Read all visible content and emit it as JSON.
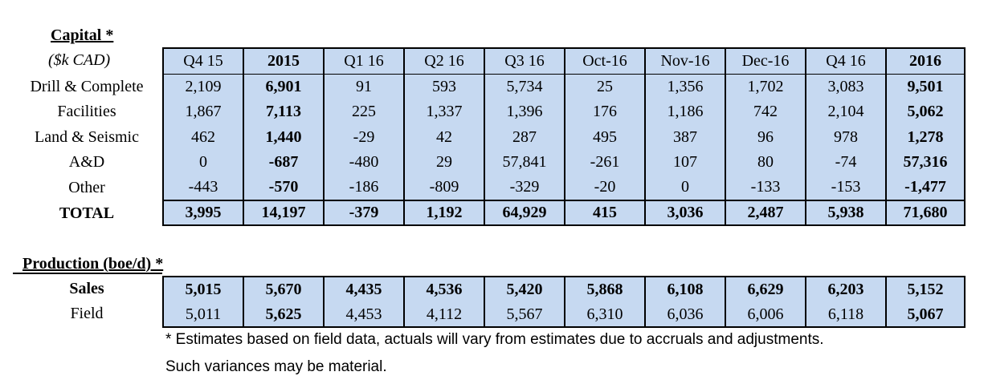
{
  "capital": {
    "title": "Capital *",
    "unit": "($k CAD)",
    "columns": [
      "Q4 15",
      "2015",
      "Q1 16",
      "Q2 16",
      "Q3 16",
      "Oct-16",
      "Nov-16",
      "Dec-16",
      "Q4 16",
      "2016"
    ],
    "rows": [
      {
        "label": "Drill & Complete",
        "values": [
          "2,109",
          "6,901",
          "91",
          "593",
          "5,734",
          "25",
          "1,356",
          "1,702",
          "3,083",
          "9,501"
        ]
      },
      {
        "label": "Facilities",
        "values": [
          "1,867",
          "7,113",
          "225",
          "1,337",
          "1,396",
          "176",
          "1,186",
          "742",
          "2,104",
          "5,062"
        ]
      },
      {
        "label": "Land & Seismic",
        "values": [
          "462",
          "1,440",
          "-29",
          "42",
          "287",
          "495",
          "387",
          "96",
          "978",
          "1,278"
        ]
      },
      {
        "label": "A&D",
        "values": [
          "0",
          "-687",
          "-480",
          "29",
          "57,841",
          "-261",
          "107",
          "80",
          "-74",
          "57,316"
        ]
      },
      {
        "label": "Other",
        "values": [
          "-443",
          "-570",
          "-186",
          "-809",
          "-329",
          "-20",
          "0",
          "-133",
          "-153",
          "-1,477"
        ]
      }
    ],
    "total": {
      "label": "TOTAL",
      "values": [
        "3,995",
        "14,197",
        "-379",
        "1,192",
        "64,929",
        "415",
        "3,036",
        "2,487",
        "5,938",
        "71,680"
      ]
    }
  },
  "production": {
    "title": "Production (boe/d) *",
    "rows": [
      {
        "label": "Sales",
        "values": [
          "5,015",
          "5,670",
          "4,435",
          "4,536",
          "5,420",
          "5,868",
          "6,108",
          "6,629",
          "6,203",
          "5,152"
        ]
      },
      {
        "label": "Field",
        "values": [
          "5,011",
          "5,625",
          "4,453",
          "4,112",
          "5,567",
          "6,310",
          "6,036",
          "6,006",
          "6,118",
          "5,067"
        ]
      }
    ]
  },
  "footnote": {
    "line1": "* Estimates based on field data, actuals will vary from estimates due to accruals and adjustments.",
    "line2": "Such variances may be material."
  }
}
